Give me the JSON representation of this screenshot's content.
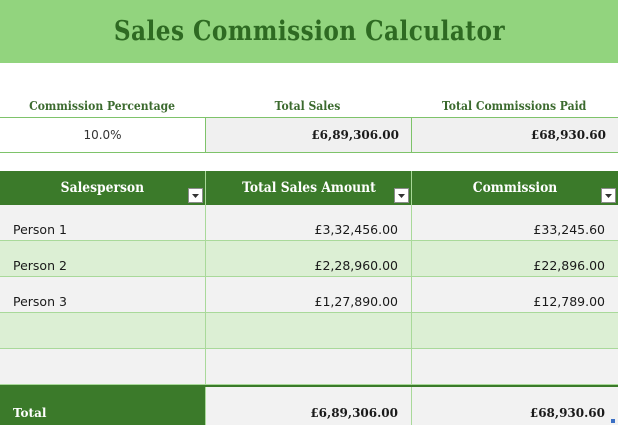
{
  "title": "Sales Commission Calculator",
  "summary": {
    "labels": {
      "commission_percentage": "Commission Percentage",
      "total_sales": "Total Sales",
      "total_commissions_paid": "Total Commissions Paid"
    },
    "values": {
      "commission_percentage": "10.0%",
      "total_sales": "£6,89,306.00",
      "total_commissions_paid": "£68,930.60"
    }
  },
  "table": {
    "headers": [
      "Salesperson",
      "Total Sales Amount",
      "Commission"
    ],
    "rows": [
      [
        "Person 1",
        "£3,32,456.00",
        "£33,245.60"
      ],
      [
        "Person 2",
        "£2,28,960.00",
        "£22,896.00"
      ],
      [
        "Person 3",
        "£1,27,890.00",
        "£12,789.00"
      ],
      [
        "",
        "",
        ""
      ],
      [
        "",
        "",
        ""
      ]
    ],
    "total": {
      "label": "Total",
      "total_sales_amount": "£6,89,306.00",
      "commission": "£68,930.60"
    }
  },
  "icons": {
    "filter_dropdown": "chevron-down-icon"
  },
  "colors": {
    "banner": "#92d47e",
    "header": "#3b7a2a",
    "title_text": "#2e6a22",
    "row_green": "#dcefd4",
    "row_light": "#f2f2f2"
  }
}
